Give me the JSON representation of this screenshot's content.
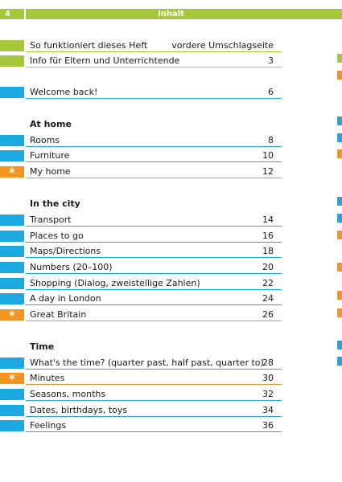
{
  "header": {
    "page_number": "4",
    "title": "Inhalt"
  },
  "colors": {
    "green": "#a7c73a",
    "blue": "#1aa9e0",
    "orange": "#f39320",
    "star_glyph": "✶"
  },
  "intro_items": [
    {
      "label": "So funktioniert dieses Heft",
      "page": "vordere Umschlagseite",
      "color": "#a7c73a"
    },
    {
      "label": "Info für Eltern und Unterrichtende",
      "page": "3",
      "color": "#a7c73a"
    },
    {
      "label": "Welcome back!",
      "page": "6",
      "color": "#1aa9e0"
    }
  ],
  "sections": [
    {
      "heading": "At home",
      "items": [
        {
          "label": "Rooms",
          "page": "8",
          "color": "#1aa9e0",
          "star": false
        },
        {
          "label": "Furniture",
          "page": "10",
          "color": "#1aa9e0",
          "star": false
        },
        {
          "label": "My home",
          "page": "12",
          "color": "#f39320",
          "star": true
        }
      ]
    },
    {
      "heading": "In the city",
      "items": [
        {
          "label": "Transport",
          "page": "14",
          "color": "#1aa9e0",
          "star": false
        },
        {
          "label": "Places to go",
          "page": "16",
          "color": "#1aa9e0",
          "star": false
        },
        {
          "label": "Maps/Directions",
          "page": "18",
          "color": "#1aa9e0",
          "star": false
        },
        {
          "label": "Numbers (20–100)",
          "page": "20",
          "color": "#1aa9e0",
          "star": false
        },
        {
          "label": "Shopping (Dialog, zweistellige Zahlen)",
          "page": "22",
          "color": "#1aa9e0",
          "star": false
        },
        {
          "label": "A day in London",
          "page": "24",
          "color": "#1aa9e0",
          "star": false
        },
        {
          "label": "Great Britain",
          "page": "26",
          "color": "#f39320",
          "star": true
        }
      ]
    },
    {
      "heading": "Time",
      "items": [
        {
          "label": "What's the time? (quarter past, half past, quarter to)",
          "page": "28",
          "color": "#1aa9e0",
          "star": false
        },
        {
          "label": "Minutes",
          "page": "30",
          "color": "#f39320",
          "star": true
        },
        {
          "label": "Seasons, months",
          "page": "32",
          "color": "#1aa9e0",
          "star": false
        },
        {
          "label": "Dates, birthdays, toys",
          "page": "34",
          "color": "#1aa9e0",
          "star": false
        },
        {
          "label": "Feelings",
          "page": "36",
          "color": "#1aa9e0",
          "star": false
        }
      ]
    }
  ],
  "edge_marks": [
    "#a7c73a",
    "#f39320",
    "#1aa9e0",
    "#1aa9e0",
    "#f39320",
    "#1aa9e0",
    "#1aa9e0",
    "#f39320",
    "#f39320",
    "#f39320",
    "#f39320",
    "#1aa9e0",
    "#1aa9e0"
  ]
}
